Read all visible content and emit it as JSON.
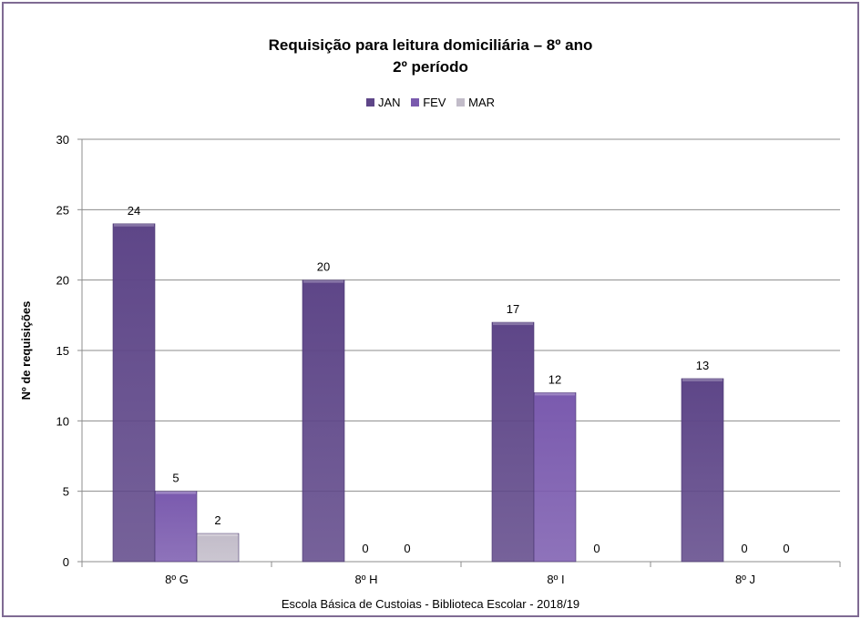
{
  "chart_data": {
    "type": "bar",
    "title": "Requisição para leitura domiciliária  – 8º ano",
    "subtitle": "2º período",
    "ylabel": "Nº de requisições",
    "xlabel": "",
    "categories": [
      "8º G",
      "8º H",
      "8º I",
      "8º J"
    ],
    "series": [
      {
        "name": "JAN",
        "values": [
          24,
          20,
          17,
          13
        ]
      },
      {
        "name": "FEV",
        "values": [
          5,
          0,
          12,
          0
        ]
      },
      {
        "name": "MAR",
        "values": [
          2,
          0,
          0,
          0
        ]
      }
    ],
    "ylim": [
      0,
      30
    ],
    "yticks": [
      0,
      5,
      10,
      15,
      20,
      25,
      30
    ],
    "grid": true,
    "legend_position": "top",
    "colors": {
      "JAN": "#5e4688",
      "FEV": "#7a5aae",
      "MAR": "#c2bcc9"
    },
    "footer": "Escola Básica de Custoias - Biblioteca Escolar  - 2018/19"
  }
}
